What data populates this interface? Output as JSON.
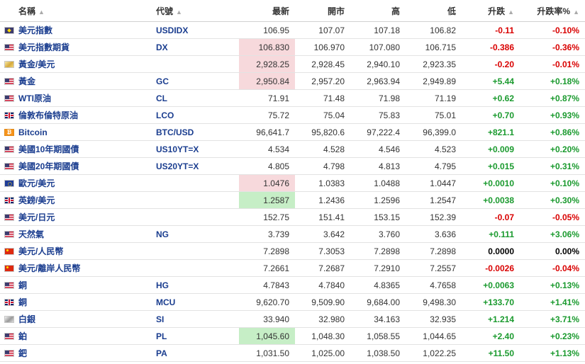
{
  "headers": {
    "name": "名稱",
    "code": "代號",
    "last": "最新",
    "open": "開市",
    "high": "高",
    "low": "低",
    "change": "升跌",
    "pct": "升跌率%",
    "sort_icon": "sort-icon"
  },
  "colors": {
    "up": "#1a9a2e",
    "down": "#d90000",
    "link": "#1a3d8f",
    "hl_red": "#f7d9dc",
    "hl_green": "#c6eec6"
  },
  "rows": [
    {
      "flag": "idx",
      "name": "美元指數",
      "code": "USDIDX",
      "last": "106.95",
      "open": "107.07",
      "high": "107.18",
      "low": "106.82",
      "change": "-0.11",
      "pct": "-0.10%",
      "dir": "down",
      "hl": ""
    },
    {
      "flag": "us",
      "name": "美元指數期貨",
      "code": "DX",
      "last": "106.830",
      "open": "106.970",
      "high": "107.080",
      "low": "106.715",
      "change": "-0.386",
      "pct": "-0.36%",
      "dir": "down",
      "hl": "red"
    },
    {
      "flag": "gold",
      "name": "黃金/美元",
      "code": "",
      "last": "2,928.25",
      "open": "2,928.45",
      "high": "2,940.10",
      "low": "2,923.35",
      "change": "-0.20",
      "pct": "-0.01%",
      "dir": "down",
      "hl": "red"
    },
    {
      "flag": "us",
      "name": "黃金",
      "code": "GC",
      "last": "2,950.84",
      "open": "2,957.20",
      "high": "2,963.94",
      "low": "2,949.89",
      "change": "+5.44",
      "pct": "+0.18%",
      "dir": "up",
      "hl": "red"
    },
    {
      "flag": "us",
      "name": "WTI原油",
      "code": "CL",
      "last": "71.91",
      "open": "71.48",
      "high": "71.98",
      "low": "71.19",
      "change": "+0.62",
      "pct": "+0.87%",
      "dir": "up",
      "hl": ""
    },
    {
      "flag": "uk",
      "name": "倫敦布倫特原油",
      "code": "LCO",
      "last": "75.72",
      "open": "75.04",
      "high": "75.83",
      "low": "75.01",
      "change": "+0.70",
      "pct": "+0.93%",
      "dir": "up",
      "hl": ""
    },
    {
      "flag": "btc",
      "name": "Bitcoin",
      "code": "BTC/USD",
      "last": "96,641.7",
      "open": "95,820.6",
      "high": "97,222.4",
      "low": "96,399.0",
      "change": "+821.1",
      "pct": "+0.86%",
      "dir": "up",
      "hl": ""
    },
    {
      "flag": "us",
      "name": "美國10年期國債",
      "code": "US10YT=X",
      "last": "4.534",
      "open": "4.528",
      "high": "4.546",
      "low": "4.523",
      "change": "+0.009",
      "pct": "+0.20%",
      "dir": "up",
      "hl": ""
    },
    {
      "flag": "us",
      "name": "美國20年期國債",
      "code": "US20YT=X",
      "last": "4.805",
      "open": "4.798",
      "high": "4.813",
      "low": "4.795",
      "change": "+0.015",
      "pct": "+0.31%",
      "dir": "up",
      "hl": ""
    },
    {
      "flag": "eu",
      "name": "歐元/美元",
      "code": "",
      "last": "1.0476",
      "open": "1.0383",
      "high": "1.0488",
      "low": "1.0447",
      "change": "+0.0010",
      "pct": "+0.10%",
      "dir": "up",
      "hl": "red"
    },
    {
      "flag": "uk",
      "name": "英鎊/美元",
      "code": "",
      "last": "1.2587",
      "open": "1.2436",
      "high": "1.2596",
      "low": "1.2547",
      "change": "+0.0038",
      "pct": "+0.30%",
      "dir": "up",
      "hl": "green"
    },
    {
      "flag": "us",
      "name": "美元/日元",
      "code": "",
      "last": "152.75",
      "open": "151.41",
      "high": "153.15",
      "low": "152.39",
      "change": "-0.07",
      "pct": "-0.05%",
      "dir": "down",
      "hl": ""
    },
    {
      "flag": "us",
      "name": "天然氣",
      "code": "NG",
      "last": "3.739",
      "open": "3.642",
      "high": "3.760",
      "low": "3.636",
      "change": "+0.111",
      "pct": "+3.06%",
      "dir": "up",
      "hl": ""
    },
    {
      "flag": "cn",
      "name": "美元/人民幣",
      "code": "",
      "last": "7.2898",
      "open": "7.3053",
      "high": "7.2898",
      "low": "7.2898",
      "change": "0.0000",
      "pct": "0.00%",
      "dir": "flat",
      "hl": ""
    },
    {
      "flag": "cn",
      "name": "美元/離岸人民幣",
      "code": "",
      "last": "7.2661",
      "open": "7.2687",
      "high": "7.2910",
      "low": "7.2557",
      "change": "-0.0026",
      "pct": "-0.04%",
      "dir": "down",
      "hl": ""
    },
    {
      "flag": "us",
      "name": "銅",
      "code": "HG",
      "last": "4.7843",
      "open": "4.7840",
      "high": "4.8365",
      "low": "4.7658",
      "change": "+0.0063",
      "pct": "+0.13%",
      "dir": "up",
      "hl": ""
    },
    {
      "flag": "uk",
      "name": "銅",
      "code": "MCU",
      "last": "9,620.70",
      "open": "9,509.90",
      "high": "9,684.00",
      "low": "9,498.30",
      "change": "+133.70",
      "pct": "+1.41%",
      "dir": "up",
      "hl": ""
    },
    {
      "flag": "silver",
      "name": "白銀",
      "code": "SI",
      "last": "33.940",
      "open": "32.980",
      "high": "34.163",
      "low": "32.935",
      "change": "+1.214",
      "pct": "+3.71%",
      "dir": "up",
      "hl": ""
    },
    {
      "flag": "us",
      "name": "鉑",
      "code": "PL",
      "last": "1,045.60",
      "open": "1,048.30",
      "high": "1,058.55",
      "low": "1,044.65",
      "change": "+2.40",
      "pct": "+0.23%",
      "dir": "up",
      "hl": "green"
    },
    {
      "flag": "us",
      "name": "鈀",
      "code": "PA",
      "last": "1,031.50",
      "open": "1,025.00",
      "high": "1,038.50",
      "low": "1,022.25",
      "change": "+11.50",
      "pct": "+1.13%",
      "dir": "up",
      "hl": ""
    }
  ]
}
